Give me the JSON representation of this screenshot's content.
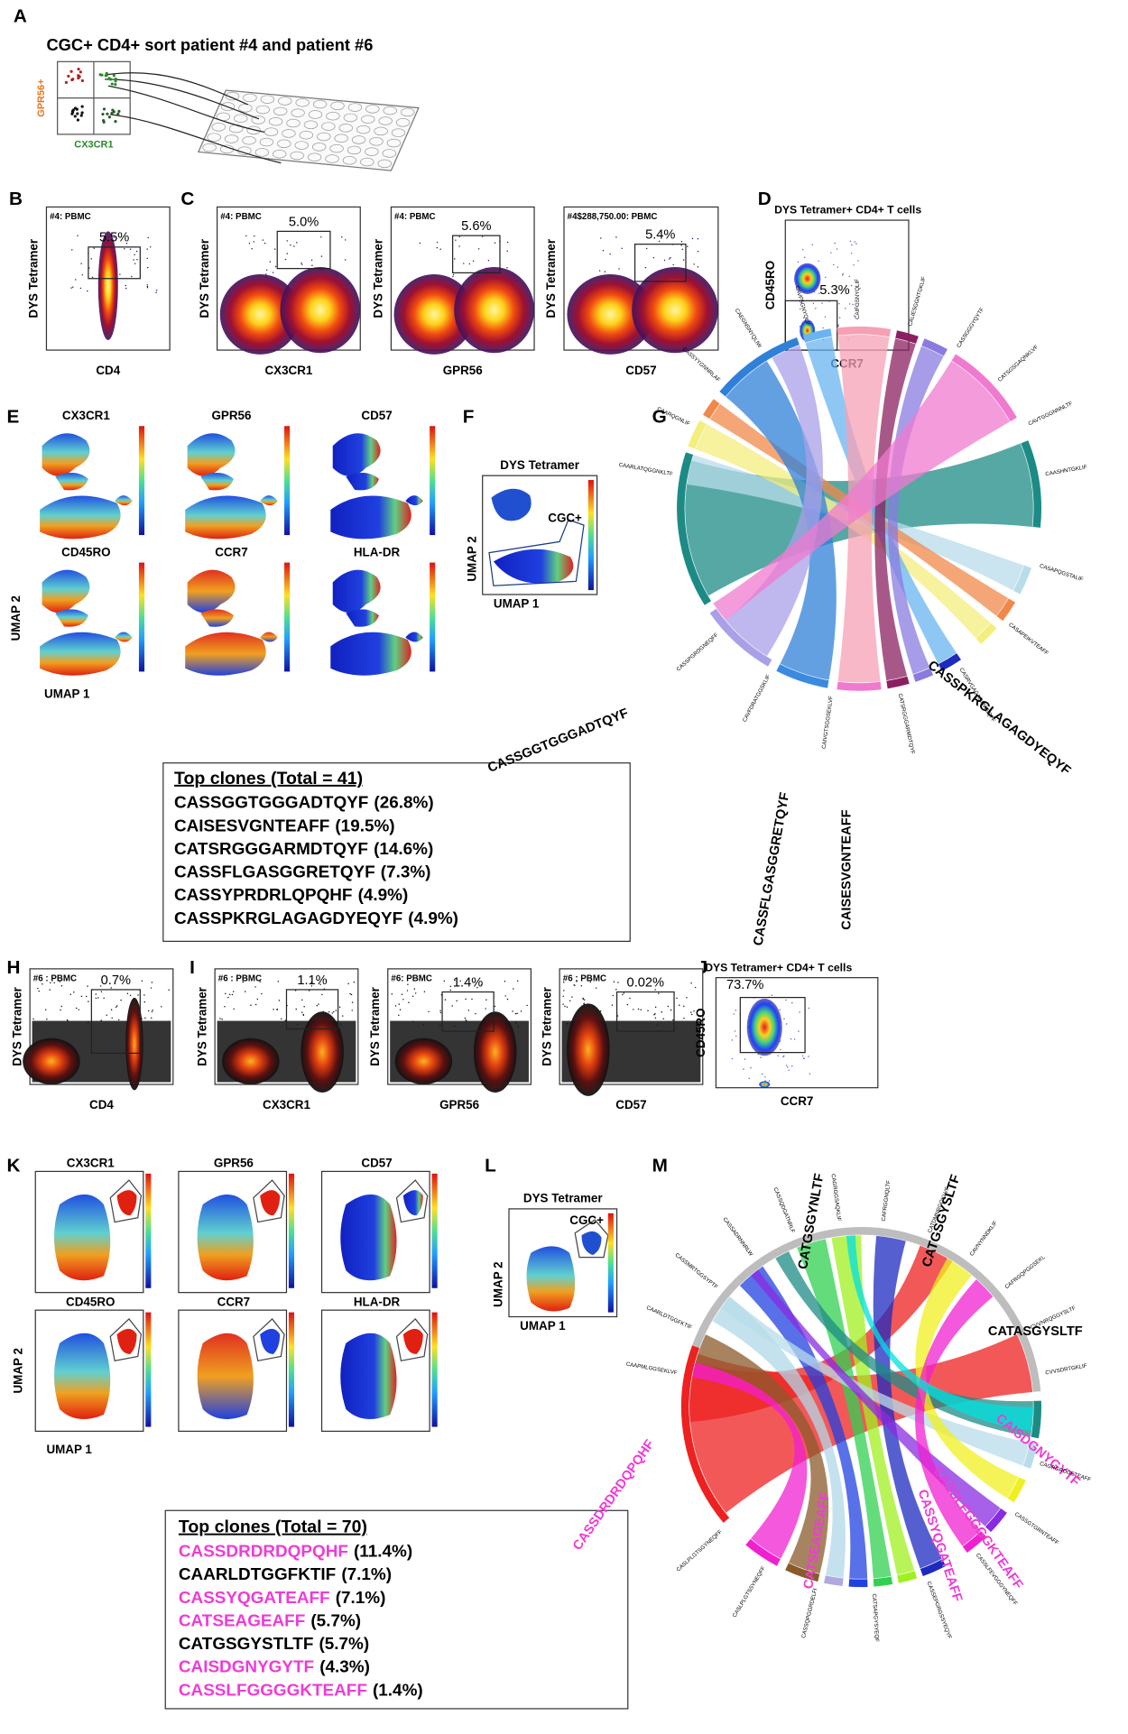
{
  "panel_labels": [
    "A",
    "B",
    "C",
    "D",
    "E",
    "F",
    "G",
    "H",
    "I",
    "J",
    "K",
    "L",
    "M"
  ],
  "panel_a": {
    "title": "CGC+ CD4+ sort patient #4 and patient #6",
    "y_label": "GPR56+",
    "x_label": "CX3CR1"
  },
  "flow_plots": [
    {
      "sample": "#4: PBMC",
      "y_label": "DYS Tetramer",
      "x_label": "CD4",
      "gate": "5.5%"
    },
    {
      "sample": "#4: PBMC",
      "y_label": "DYS Tetramer",
      "x_label": "CX3CR1",
      "gate": "5.0%"
    },
    {
      "sample": "#4: PBMC",
      "y_label": "DYS Tetramer",
      "x_label": "GPR56",
      "gate": "5.6%"
    },
    {
      "sample": "#4$288,750.00: PBMC",
      "y_label": "DYS Tetramer",
      "x_label": "CD57",
      "gate": "5.4%"
    },
    {
      "sample": "#6 : PBMC",
      "y_label": "DYS Tetramer",
      "x_label": "CD4",
      "gate": "0.7%"
    },
    {
      "sample": "#6 : PBMC",
      "y_label": "DYS Tetramer",
      "x_label": "CX3CR1",
      "gate": "1.1%"
    },
    {
      "sample": "#6: PBMC",
      "y_label": "DYS Tetramer",
      "x_label": "GPR56",
      "gate": "1.4%"
    },
    {
      "sample": "#6 : PBMC",
      "y_label": "DYS Tetramer",
      "x_label": "CD57",
      "gate": "0.02%"
    }
  ],
  "ccr7_plots": [
    {
      "title": "DYS Tetramer+ CD4+ T cells",
      "y_label": "CD45RO",
      "x_label": "CCR7",
      "gate": "5.3%"
    },
    {
      "title": "DYS Tetramer+ CD4+ T cells",
      "y_label": "CD45RO",
      "x_label": "CCR7",
      "gate": "73.7%"
    }
  ],
  "umap_grids": [
    {
      "markers": [
        "CX3CR1",
        "GPR56",
        "CD57",
        "CD45RO",
        "CCR7",
        "HLA-DR"
      ],
      "y_label": "UMAP 2",
      "x_label": "UMAP 1"
    },
    {
      "markers": [
        "CX3CR1",
        "GPR56",
        "CD57",
        "CD45RO",
        "CCR7",
        "HLA-DR"
      ],
      "y_label": "UMAP 2",
      "x_label": "UMAP 1"
    }
  ],
  "umap_gates": [
    {
      "title": "DYS Tetramer",
      "gate": "CGC+",
      "y_label": "UMAP 2",
      "x_label": "UMAP 1"
    },
    {
      "title": "DYS Tetramer",
      "gate": "CGC+",
      "y_label": "UMAP 2",
      "x_label": "UMAP 1"
    }
  ],
  "chords": [
    {
      "large_labels": [
        "CASSGGTGGGADTQYF",
        "CASSFLGASGGRETQYF",
        "CAISESVGNTEAFF",
        "CASSPKRGLAGAGDYEQYF"
      ],
      "small_labels": [
        "CAARLATQGGNKLTF",
        "CAARQGNLIF",
        "CASSYYGNNRLAF",
        "CAEGNSNYQLIW",
        "CAVFSGNYQLIF",
        "CAIFGSNYQLIF",
        "CALIESGGNTGKLIF",
        "CASSGGGYQYTF",
        "CATSGSGAQNKLVF",
        "CAVTGGGNNNLTF",
        "CAASHNTGKLIF",
        "CASAPQGSTALIF",
        "CASAPEIKVTEAFF",
        "CASRVGAGAGNWEQFF",
        "CATSRGGGARMDTQYF",
        "CAIVGTSGGSEKLVF",
        "CAVFDRATGGSKLIF",
        "CASSPGRDGNEQFF"
      ]
    },
    {
      "large_labels": [
        "CATGSGYNLTF",
        "CATGSGYSLTF",
        "CATASGYSLTF",
        "CAISDGNYGYTF",
        "CASSLFGGGGKTEAFF",
        "CASSYQGATEAFF",
        "CATSEAGEAFF",
        "CASSDRDRDQPQHF"
      ],
      "large_label_colors": [
        "#000000",
        "#000000",
        "#000000",
        "#ee3bd6",
        "#ee3bd6",
        "#ee3bd6",
        "#ee3bd6",
        "#ee3bd6"
      ],
      "small_labels": [
        "CAAPMLGGSEKLVF",
        "CAARLDTGGFKTIF",
        "CASSMRTGGSYPTF",
        "CASSADRNNRLW",
        "CASSQDGATNRLF",
        "CAGRGGSAQKLIF",
        "CAFRGGNQLTF",
        "CATDMNRGQKLVF",
        "CAVNYNNDKLIF",
        "CAFRGQPGGSEKL",
        "CVVNRQGGYSLTF",
        "CVVSDRTGKLIF",
        "CAGRGRDGETEAFF",
        "CASSGTGRNTEAFF",
        "CASSLFEVGGGYNEQFF",
        "CASSEPGRGSSYEQYF",
        "CATSAPGYSYEQF",
        "CASSQPGGRDELFI",
        "CASLPLGTSSYNEQFF",
        "CASLPLGTSGYNEQFF"
      ]
    }
  ],
  "top_clones": [
    {
      "title": "Top clones (Total = 41)",
      "clones": [
        {
          "sequence": "CASSGGTGGGADTQYF",
          "share": "(26.8%)",
          "color": "#000000"
        },
        {
          "sequence": "CAISESVGNTEAFF",
          "share": "(19.5%)",
          "color": "#000000"
        },
        {
          "sequence": "CATSRGGGARMDTQYF",
          "share": "(14.6%)",
          "color": "#000000"
        },
        {
          "sequence": "CASSFLGASGGRETQYF",
          "share": "(7.3%)",
          "color": "#000000"
        },
        {
          "sequence": "CASSYPRDRLQPQHF",
          "share": "(4.9%)",
          "color": "#000000"
        },
        {
          "sequence": "CASSPKRGLAGAGDYEQYF",
          "share": "(4.9%)",
          "color": "#000000"
        }
      ]
    },
    {
      "title": "Top clones (Total = 70)",
      "clones": [
        {
          "sequence": "CASSDRDRDQPQHF",
          "share": "(11.4%)",
          "color": "#ee3bd6"
        },
        {
          "sequence": "CAARLDTGGFKTIF",
          "share": "(7.1%)",
          "color": "#000000"
        },
        {
          "sequence": "CASSYQGATEAFF",
          "share": "(7.1%)",
          "color": "#ee3bd6"
        },
        {
          "sequence": "CATSEAGEAFF",
          "share": "(5.7%)",
          "color": "#ee3bd6"
        },
        {
          "sequence": "CATGSGYSTLTF",
          "share": "(5.7%)",
          "color": "#000000"
        },
        {
          "sequence": "CAISDGNYGYTF",
          "share": "(4.3%)",
          "color": "#ee3bd6"
        },
        {
          "sequence": "CASSLFGGGGKTEAFF",
          "share": "(1.4%)",
          "color": "#ee3bd6"
        }
      ]
    }
  ]
}
